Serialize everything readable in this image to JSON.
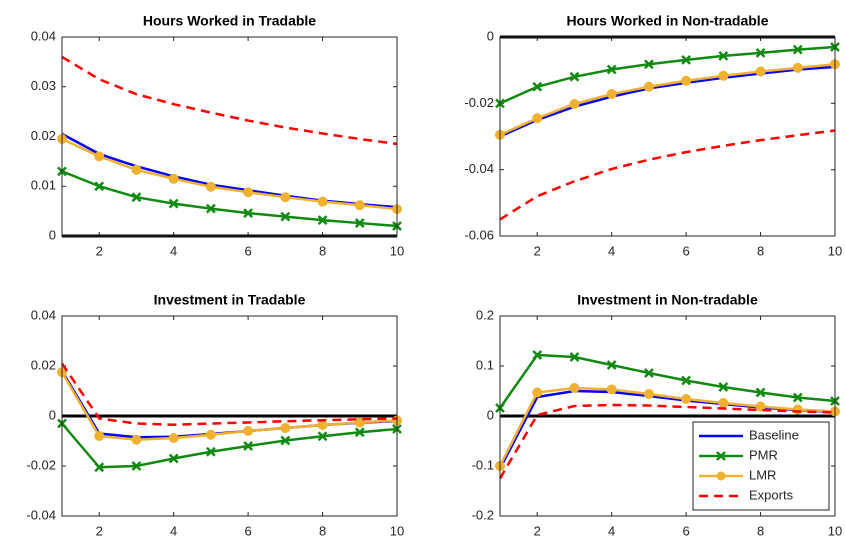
{
  "chart_data": [
    {
      "type": "line",
      "title": "Hours Worked in Tradable",
      "x": [
        1,
        2,
        3,
        4,
        5,
        6,
        7,
        8,
        9,
        10
      ],
      "xlim": [
        1,
        10
      ],
      "xticks": [
        2,
        4,
        6,
        8,
        10
      ],
      "ylim": [
        0,
        0.04
      ],
      "yticks": [
        0,
        0.01,
        0.02,
        0.03,
        0.04
      ],
      "series": [
        {
          "color": "#0000ff",
          "values": [
            0.0205,
            0.0165,
            0.014,
            0.012,
            0.0103,
            0.0092,
            0.0081,
            0.0071,
            0.0064,
            0.0058
          ]
        },
        {
          "color": "#108a10",
          "marker": "x",
          "values": [
            0.013,
            0.01,
            0.0078,
            0.0065,
            0.0055,
            0.0046,
            0.0039,
            0.0032,
            0.0026,
            0.002
          ]
        },
        {
          "color": "#f0b030",
          "marker": "o",
          "values": [
            0.0195,
            0.016,
            0.0133,
            0.0115,
            0.0099,
            0.0088,
            0.0078,
            0.0069,
            0.0062,
            0.0054
          ]
        },
        {
          "color": "#ff0000",
          "dashed": true,
          "values": [
            0.036,
            0.0315,
            0.0285,
            0.0265,
            0.0248,
            0.0232,
            0.0218,
            0.0206,
            0.0195,
            0.0185
          ]
        }
      ]
    },
    {
      "type": "line",
      "title": "Hours Worked in Non-tradable",
      "x": [
        1,
        2,
        3,
        4,
        5,
        6,
        7,
        8,
        9,
        10
      ],
      "xlim": [
        1,
        10
      ],
      "xticks": [
        2,
        4,
        6,
        8,
        10
      ],
      "ylim": [
        -0.06,
        0
      ],
      "yticks": [
        -0.06,
        -0.04,
        -0.02,
        0
      ],
      "series": [
        {
          "color": "#0000ff",
          "values": [
            -0.03,
            -0.025,
            -0.021,
            -0.018,
            -0.0155,
            -0.0138,
            -0.0123,
            -0.011,
            -0.0098,
            -0.009
          ]
        },
        {
          "color": "#108a10",
          "marker": "x",
          "values": [
            -0.02,
            -0.015,
            -0.012,
            -0.0098,
            -0.0082,
            -0.0069,
            -0.0057,
            -0.0048,
            -0.0038,
            -0.003
          ]
        },
        {
          "color": "#f0b030",
          "marker": "o",
          "values": [
            -0.0295,
            -0.0245,
            -0.0202,
            -0.0172,
            -0.015,
            -0.0132,
            -0.0117,
            -0.0104,
            -0.0093,
            -0.0082
          ]
        },
        {
          "color": "#ff0000",
          "dashed": true,
          "values": [
            -0.055,
            -0.048,
            -0.0435,
            -0.0398,
            -0.037,
            -0.0347,
            -0.0328,
            -0.0311,
            -0.0296,
            -0.0282
          ]
        }
      ]
    },
    {
      "type": "line",
      "title": "Investment in Tradable",
      "x": [
        1,
        2,
        3,
        4,
        5,
        6,
        7,
        8,
        9,
        10
      ],
      "xlim": [
        1,
        10
      ],
      "xticks": [
        2,
        4,
        6,
        8,
        10
      ],
      "ylim": [
        -0.04,
        0.04
      ],
      "yticks": [
        -0.04,
        -0.02,
        0,
        0.02,
        0.04
      ],
      "series": [
        {
          "color": "#0000ff",
          "values": [
            0.018,
            -0.007,
            -0.0085,
            -0.0083,
            -0.0072,
            -0.006,
            -0.0048,
            -0.0036,
            -0.0027,
            -0.002
          ]
        },
        {
          "color": "#108a10",
          "marker": "x",
          "values": [
            -0.003,
            -0.0205,
            -0.02,
            -0.017,
            -0.0143,
            -0.012,
            -0.0098,
            -0.0081,
            -0.0065,
            -0.0052
          ]
        },
        {
          "color": "#f0b030",
          "marker": "o",
          "values": [
            0.0175,
            -0.008,
            -0.0095,
            -0.0088,
            -0.0075,
            -0.006,
            -0.0048,
            -0.0036,
            -0.0026,
            -0.0018
          ]
        },
        {
          "color": "#ff0000",
          "dashed": true,
          "values": [
            0.021,
            -0.001,
            -0.003,
            -0.0035,
            -0.003,
            -0.0026,
            -0.0021,
            -0.0017,
            -0.0013,
            -0.001
          ]
        }
      ]
    },
    {
      "type": "line",
      "title": "Investment in Non-tradable",
      "x": [
        1,
        2,
        3,
        4,
        5,
        6,
        7,
        8,
        9,
        10
      ],
      "xlim": [
        1,
        10
      ],
      "xticks": [
        2,
        4,
        6,
        8,
        10
      ],
      "ylim": [
        -0.2,
        0.2
      ],
      "yticks": [
        -0.2,
        -0.1,
        0,
        0.1,
        0.2
      ],
      "legend": "southeast",
      "series": [
        {
          "name": "Baseline",
          "color": "#0000ff",
          "values": [
            -0.105,
            0.038,
            0.05,
            0.048,
            0.04,
            0.031,
            0.024,
            0.017,
            0.012,
            0.008
          ]
        },
        {
          "name": "PMR",
          "color": "#108a10",
          "marker": "x",
          "values": [
            0.016,
            0.122,
            0.118,
            0.102,
            0.086,
            0.071,
            0.058,
            0.047,
            0.037,
            0.03
          ]
        },
        {
          "name": "LMR",
          "color": "#f0b030",
          "marker": "o",
          "values": [
            -0.1,
            0.047,
            0.056,
            0.053,
            0.044,
            0.034,
            0.026,
            0.019,
            0.013,
            0.009
          ]
        },
        {
          "name": "Exports",
          "color": "#ff0000",
          "dashed": true,
          "values": [
            -0.125,
            0.002,
            0.02,
            0.022,
            0.021,
            0.018,
            0.015,
            0.012,
            0.009,
            0.007
          ]
        }
      ]
    }
  ]
}
